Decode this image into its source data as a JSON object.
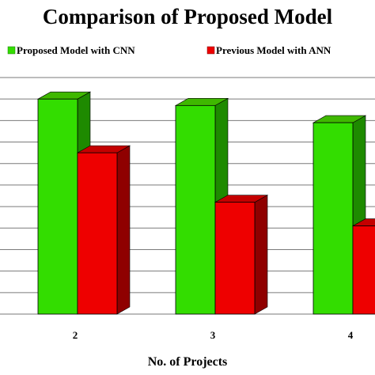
{
  "chart_data": {
    "type": "bar",
    "style": "3d-clustered-column",
    "title": "Comparison of Proposed Model",
    "xlabel": "No. of Projects",
    "ylabel": "",
    "categories": [
      "2",
      "3",
      "4"
    ],
    "series": [
      {
        "name": "Proposed Model with CNN",
        "color": "#33dd00",
        "values": [
          100,
          97,
          89
        ]
      },
      {
        "name": "Previous Model with ANN",
        "color": "#ee0000",
        "values": [
          75,
          52,
          41
        ]
      }
    ],
    "ylim": [
      0,
      110
    ],
    "grid": true,
    "legend_position": "top"
  }
}
